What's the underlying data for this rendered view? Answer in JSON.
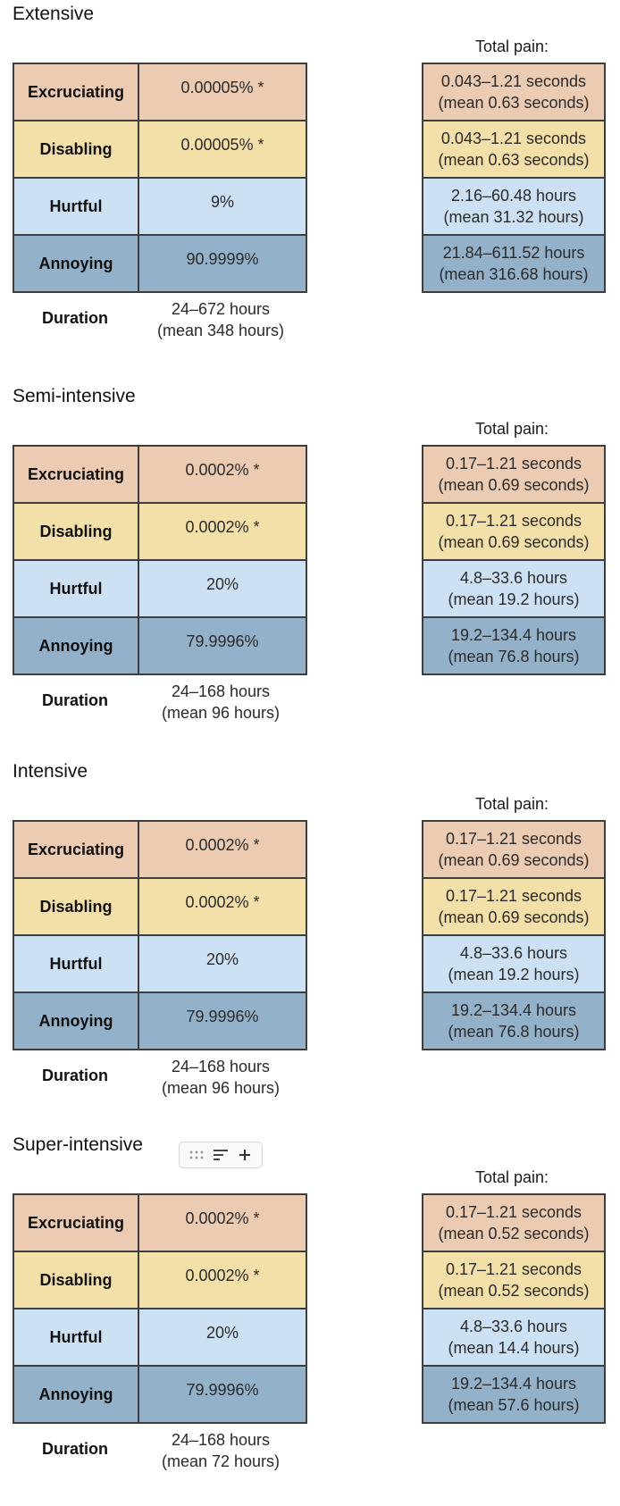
{
  "sections": [
    {
      "title": "Extensive",
      "rows": [
        {
          "label": "Excruciating",
          "value": "0.00005% *"
        },
        {
          "label": "Disabling",
          "value": "0.00005% *"
        },
        {
          "label": "Hurtful",
          "value": "9%"
        },
        {
          "label": "Annoying",
          "value": "90.9999%"
        }
      ],
      "duration_label": "Duration",
      "duration_line1": "24–672 hours",
      "duration_line2": "(mean 348 hours)",
      "total_pain_title": "Total pain:",
      "total_pain": [
        {
          "line1": "0.043–1.21 seconds",
          "line2": "(mean 0.63 seconds)"
        },
        {
          "line1": "0.043–1.21 seconds",
          "line2": "(mean 0.63 seconds)"
        },
        {
          "line1": "2.16–60.48 hours",
          "line2": "(mean 31.32 hours)"
        },
        {
          "line1": "21.84–611.52 hours",
          "line2": "(mean 316.68 hours)"
        }
      ]
    },
    {
      "title": "Semi-intensive",
      "rows": [
        {
          "label": "Excruciating",
          "value": "0.0002% *"
        },
        {
          "label": "Disabling",
          "value": "0.0002% *"
        },
        {
          "label": "Hurtful",
          "value": "20%"
        },
        {
          "label": "Annoying",
          "value": "79.9996%"
        }
      ],
      "duration_label": "Duration",
      "duration_line1": "24–168 hours",
      "duration_line2": "(mean 96 hours)",
      "total_pain_title": "Total pain:",
      "total_pain": [
        {
          "line1": "0.17–1.21 seconds",
          "line2": "(mean 0.69 seconds)"
        },
        {
          "line1": "0.17–1.21 seconds",
          "line2": "(mean 0.69 seconds)"
        },
        {
          "line1": "4.8–33.6 hours",
          "line2": "(mean 19.2 hours)"
        },
        {
          "line1": "19.2–134.4 hours",
          "line2": "(mean 76.8 hours)"
        }
      ]
    },
    {
      "title": "Intensive",
      "rows": [
        {
          "label": "Excruciating",
          "value": "0.0002% *"
        },
        {
          "label": "Disabling",
          "value": "0.0002% *"
        },
        {
          "label": "Hurtful",
          "value": "20%"
        },
        {
          "label": "Annoying",
          "value": "79.9996%"
        }
      ],
      "duration_label": "Duration",
      "duration_line1": "24–168 hours",
      "duration_line2": "(mean 96 hours)",
      "total_pain_title": "Total pain:",
      "total_pain": [
        {
          "line1": "0.17–1.21 seconds",
          "line2": "(mean 0.69 seconds)"
        },
        {
          "line1": "0.17–1.21 seconds",
          "line2": "(mean 0.69 seconds)"
        },
        {
          "line1": "4.8–33.6 hours",
          "line2": "(mean 19.2 hours)"
        },
        {
          "line1": "19.2–134.4 hours",
          "line2": "(mean 76.8 hours)"
        }
      ]
    },
    {
      "title": "Super-intensive",
      "rows": [
        {
          "label": "Excruciating",
          "value": "0.0002% *"
        },
        {
          "label": "Disabling",
          "value": "0.0002% *"
        },
        {
          "label": "Hurtful",
          "value": "20%"
        },
        {
          "label": "Annoying",
          "value": "79.9996%"
        }
      ],
      "duration_label": "Duration",
      "duration_line1": "24–168 hours",
      "duration_line2": "(mean 72 hours)",
      "total_pain_title": "Total pain:",
      "total_pain": [
        {
          "line1": "0.17–1.21 seconds",
          "line2": "(mean 0.52 seconds)"
        },
        {
          "line1": "0.17–1.21 seconds",
          "line2": "(mean 0.52 seconds)"
        },
        {
          "line1": "4.8–33.6 hours",
          "line2": "(mean 14.4 hours)"
        },
        {
          "line1": "19.2–134.4 hours",
          "line2": "(mean 57.6 hours)"
        }
      ]
    }
  ],
  "toolbar": {
    "icons": [
      "drag-handle-icon",
      "align-left-icon",
      "plus-icon"
    ]
  },
  "colors": {
    "excruciating": "#ebcbb2",
    "disabling": "#f3dfa8",
    "hurtful": "#cce2f4",
    "annoying": "#93b2c9"
  }
}
